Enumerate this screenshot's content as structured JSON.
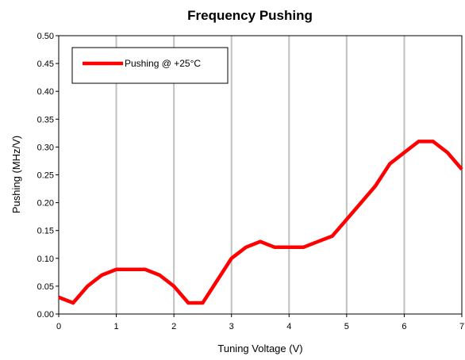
{
  "chart_data": {
    "type": "line",
    "title": "Frequency Pushing",
    "xlabel": "Tuning Voltage (V)",
    "ylabel": "Pushing (MHz/V)",
    "xlim": [
      0,
      7
    ],
    "ylim": [
      0,
      0.5
    ],
    "x_ticks": [
      "0",
      "1",
      "2",
      "3",
      "4",
      "5",
      "6",
      "7"
    ],
    "y_ticks": [
      "0.00",
      "0.05",
      "0.10",
      "0.15",
      "0.20",
      "0.25",
      "0.30",
      "0.35",
      "0.40",
      "0.45",
      "0.50"
    ],
    "grid": "vertical",
    "legend_position": "top-left",
    "series": [
      {
        "name": "Pushing @ +25°C",
        "color": "#ff0000",
        "x": [
          0,
          0.25,
          0.5,
          0.75,
          1,
          1.25,
          1.5,
          1.75,
          2,
          2.25,
          2.5,
          2.75,
          3,
          3.25,
          3.5,
          3.75,
          4,
          4.25,
          4.5,
          4.75,
          5,
          5.25,
          5.5,
          5.75,
          6,
          6.25,
          6.5,
          6.75,
          7
        ],
        "y": [
          0.03,
          0.02,
          0.05,
          0.07,
          0.08,
          0.08,
          0.08,
          0.07,
          0.05,
          0.02,
          0.02,
          0.06,
          0.1,
          0.12,
          0.13,
          0.12,
          0.12,
          0.12,
          0.13,
          0.14,
          0.17,
          0.2,
          0.23,
          0.27,
          0.29,
          0.31,
          0.31,
          0.29,
          0.26
        ]
      }
    ]
  }
}
